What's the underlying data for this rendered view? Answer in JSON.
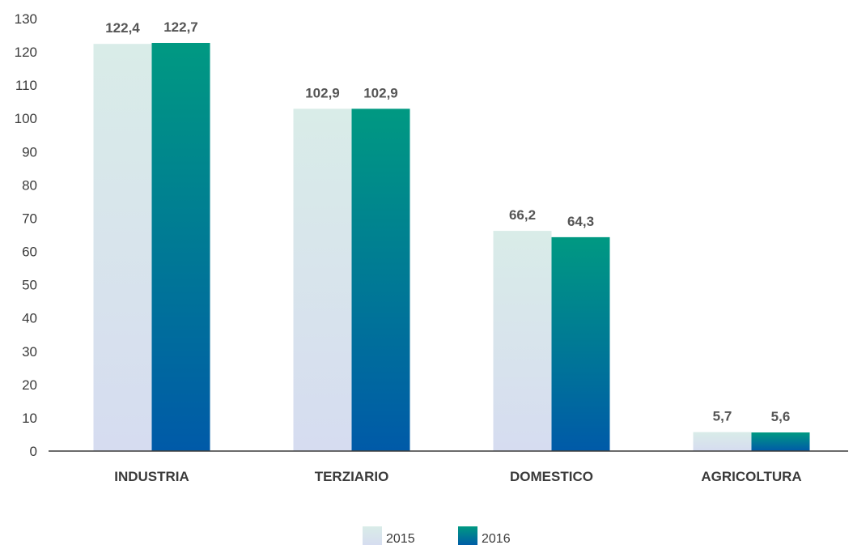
{
  "chart_data": {
    "type": "bar",
    "categories": [
      "INDUSTRIA",
      "TERZIARIO",
      "DOMESTICO",
      "AGRICOLTURA"
    ],
    "series": [
      {
        "name": "2015",
        "values": [
          122.4,
          102.9,
          66.2,
          5.7
        ],
        "labels": [
          "122,4",
          "102,9",
          "66,2",
          "5,7"
        ],
        "color_top": "#d9ece8",
        "color_bottom": "#d6dcf0"
      },
      {
        "name": "2016",
        "values": [
          122.7,
          102.9,
          64.3,
          5.6
        ],
        "labels": [
          "122,7",
          "102,9",
          "64,3",
          "5,6"
        ],
        "color_top": "#009982",
        "color_bottom": "#005aa8"
      }
    ],
    "y_ticks": [
      "0",
      "10",
      "20",
      "30",
      "40",
      "50",
      "60",
      "70",
      "80",
      "90",
      "100",
      "110",
      "120",
      "130"
    ],
    "ylim": [
      0,
      130
    ],
    "grid": false,
    "legend_position": "bottom-center"
  }
}
